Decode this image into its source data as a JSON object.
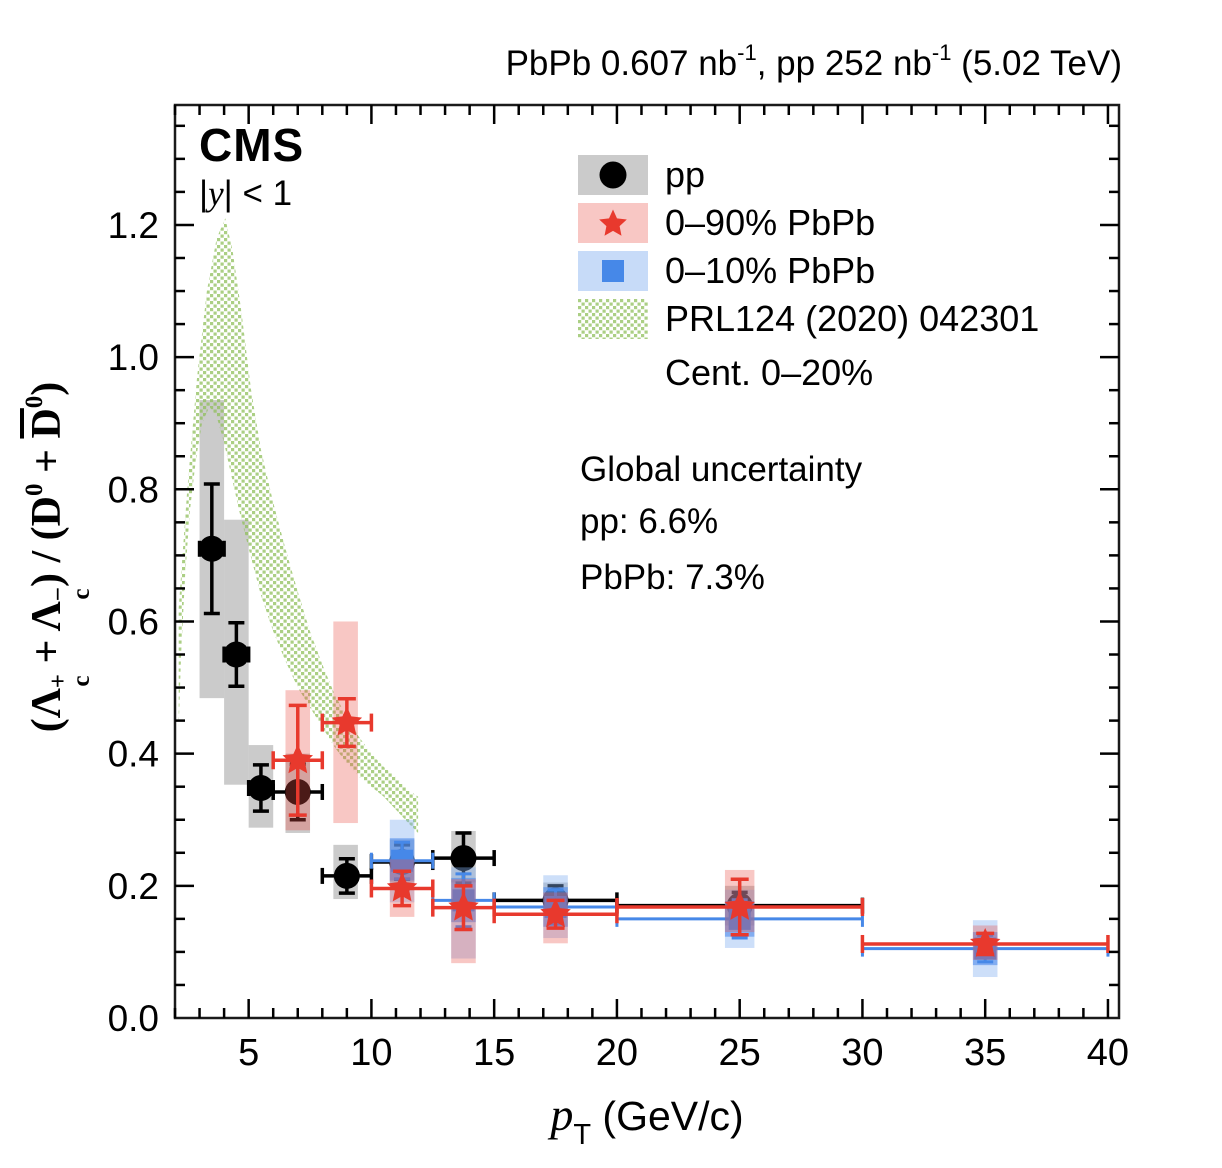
{
  "header": {
    "p1": "PbPb 0.607 nb",
    "s1": "-1",
    "p2": ", pp 252 nb",
    "s2": "-1",
    "p3": " (5.02 TeV)"
  },
  "cms": {
    "label": "CMS",
    "rap_pre": "|",
    "rap_y": "y",
    "rap_post": "| < 1"
  },
  "legend": {
    "items": [
      {
        "label": "pp",
        "marker": "circle",
        "marker_color": "#000000",
        "box_color": "rgba(140,140,140,0.45)"
      },
      {
        "label": "0–90% PbPb",
        "marker": "star",
        "marker_color": "#e8392d",
        "box_color": "rgba(232,80,70,0.32)"
      },
      {
        "label": "0–10% PbPb",
        "marker": "square",
        "marker_color": "#4688e8",
        "box_color": "rgba(130,175,240,0.45)"
      },
      {
        "label": "PRL124 (2020) 042301",
        "marker": "hatch",
        "marker_color": "#8fbf5a",
        "box_color": "#ffffff"
      },
      {
        "label": "Cent. 0–20%",
        "marker": "none",
        "marker_color": "",
        "box_color": ""
      }
    ]
  },
  "global_uncertainty": {
    "title": "Global uncertainty",
    "pp": "pp: 6.6%",
    "pbpb": "PbPb: 7.3%"
  },
  "y_title": {
    "t1": "(Λ",
    "sup1": "+",
    "sub1": "c",
    "t2": " + Λ",
    "sup2": "−",
    "sub2": "c",
    "t3": ") / (D",
    "sup3": "0",
    "t4": " + ",
    "t5": "D",
    "sup5": "0",
    "t6": ")"
  },
  "x_title": {
    "p": "p",
    "sub": "T",
    "rest": " (GeV/c)"
  },
  "chart_data": {
    "type": "scatter",
    "title": "PbPb 0.607 nb-1, pp 252 nb-1 (5.02 TeV)",
    "xlabel": "pT (GeV/c)",
    "ylabel": "(Lambda_c+ + Lambda_c-) / (D0 + D0bar)",
    "xlim": [
      2.0,
      40.45
    ],
    "ylim": [
      0,
      1.3815
    ],
    "grid": false,
    "legend_position": "top-right",
    "x_ticks": {
      "major": [
        5,
        10,
        15,
        20,
        25,
        30,
        35,
        40
      ],
      "labels": [
        "5",
        "10",
        "15",
        "20",
        "25",
        "30",
        "35",
        "40"
      ],
      "minor_step": 1
    },
    "y_ticks": {
      "major": [
        0,
        0.2,
        0.4,
        0.6,
        0.8,
        1.0,
        1.2
      ],
      "labels": [
        "0.0",
        "0.2",
        "0.4",
        "0.6",
        "0.8",
        "1.0",
        "1.2"
      ],
      "minor_step": 0.05
    },
    "series": [
      {
        "id": "pp",
        "name": "pp",
        "marker": "circle",
        "color": "#000000",
        "box_color": "rgba(140,140,140,0.45)",
        "points": [
          {
            "x": 3.5,
            "bin": [
              3,
              4
            ],
            "y": 0.71,
            "stat": 0.098,
            "box": [
              0.484,
              0.935
            ],
            "boxx": [
              3.0,
              4.0
            ]
          },
          {
            "x": 4.5,
            "bin": [
              4,
              5
            ],
            "y": 0.55,
            "stat": 0.048,
            "box": [
              0.353,
              0.754
            ],
            "boxx": [
              4.0,
              5.0
            ]
          },
          {
            "x": 5.5,
            "bin": [
              5,
              6
            ],
            "y": 0.348,
            "stat": 0.035,
            "box": [
              0.288,
              0.413
            ],
            "boxx": [
              5.0,
              6.0
            ]
          },
          {
            "x": 7.0,
            "bin": [
              6,
              8
            ],
            "y": 0.342,
            "stat": 0.042,
            "box": [
              0.28,
              0.4
            ],
            "boxx": [
              6.5,
              7.5
            ]
          },
          {
            "x": 9.0,
            "bin": [
              8,
              10
            ],
            "y": 0.215,
            "stat": 0.026,
            "box": [
              0.18,
              0.262
            ],
            "boxx": [
              8.45,
              9.45
            ]
          },
          {
            "x": 11.25,
            "bin": [
              10,
              12.5
            ],
            "y": 0.236,
            "stat": 0.026,
            "box": [
              0.205,
              0.27
            ],
            "boxx": [
              10.75,
              11.75
            ]
          },
          {
            "x": 13.75,
            "bin": [
              12.5,
              15
            ],
            "y": 0.242,
            "stat": 0.038,
            "box": [
              0.205,
              0.283
            ],
            "boxx": [
              13.25,
              14.25
            ]
          },
          {
            "x": 17.5,
            "bin": [
              15,
              20
            ],
            "y": 0.178,
            "stat": 0.022,
            "box": [
              0.155,
              0.205
            ],
            "boxx": [
              17.0,
              18.0
            ]
          },
          {
            "x": 25.0,
            "bin": [
              20,
              30
            ],
            "y": 0.17,
            "stat": 0.02,
            "box": [
              0.14,
              0.2
            ],
            "boxx": [
              24.4,
              25.6
            ]
          }
        ]
      },
      {
        "id": "pbpb010",
        "name": "0–10% PbPb",
        "marker": "square",
        "color": "#4688e8",
        "box_color": "rgba(80,140,235,0.6)",
        "outer_box_color": "rgba(130,175,240,0.4)",
        "points": [
          {
            "x": 11.25,
            "bin": [
              10,
              12.5
            ],
            "y": 0.238,
            "stat": 0.028,
            "box": [
              0.208,
              0.272
            ],
            "outer": [
              0.175,
              0.3
            ],
            "boxx": [
              10.75,
              11.75
            ]
          },
          {
            "x": 13.75,
            "bin": [
              12.5,
              15
            ],
            "y": 0.178,
            "stat": 0.04,
            "box": [
              0.145,
              0.212
            ],
            "outer": [
              0.09,
              0.228
            ],
            "boxx": [
              13.25,
              14.25
            ]
          },
          {
            "x": 17.5,
            "bin": [
              15,
              20
            ],
            "y": 0.168,
            "stat": 0.026,
            "box": [
              0.138,
              0.198
            ],
            "outer": [
              0.121,
              0.216
            ],
            "boxx": [
              17.0,
              18.0
            ]
          },
          {
            "x": 25.0,
            "bin": [
              20,
              30
            ],
            "y": 0.15,
            "stat": 0.029,
            "box": [
              0.123,
              0.177
            ],
            "outer": [
              0.106,
              0.194
            ],
            "boxx": [
              24.4,
              25.6
            ]
          },
          {
            "x": 35.0,
            "bin": [
              30,
              40
            ],
            "y": 0.105,
            "stat": 0.02,
            "box": [
              0.08,
              0.13
            ],
            "outer": [
              0.062,
              0.148
            ],
            "boxx": [
              34.5,
              35.5
            ]
          }
        ]
      },
      {
        "id": "pbpb090",
        "name": "0–90% PbPb",
        "marker": "star",
        "color": "#e8392d",
        "box_color": "rgba(232,80,70,0.32)",
        "points": [
          {
            "x": 7.0,
            "bin": [
              6,
              8
            ],
            "y": 0.39,
            "stat": 0.083,
            "box": [
              0.284,
              0.496
            ],
            "boxx": [
              6.5,
              7.5
            ]
          },
          {
            "x": 9.0,
            "bin": [
              8,
              10
            ],
            "y": 0.447,
            "stat": 0.036,
            "box": [
              0.295,
              0.6
            ],
            "boxx": [
              8.45,
              9.45
            ]
          },
          {
            "x": 11.25,
            "bin": [
              10,
              12.5
            ],
            "y": 0.196,
            "stat": 0.026,
            "box": [
              0.153,
              0.24
            ],
            "boxx": [
              10.75,
              11.75
            ]
          },
          {
            "x": 13.75,
            "bin": [
              12.5,
              15
            ],
            "y": 0.167,
            "stat": 0.033,
            "box": [
              0.083,
              0.21
            ],
            "boxx": [
              13.25,
              14.25
            ]
          },
          {
            "x": 17.5,
            "bin": [
              15,
              20
            ],
            "y": 0.157,
            "stat": 0.021,
            "box": [
              0.113,
              0.19
            ],
            "boxx": [
              17.0,
              18.0
            ]
          },
          {
            "x": 25.0,
            "bin": [
              20,
              30
            ],
            "y": 0.168,
            "stat": 0.042,
            "box": [
              0.13,
              0.224
            ],
            "boxx": [
              24.4,
              25.6
            ]
          },
          {
            "x": 35.0,
            "bin": [
              30,
              40
            ],
            "y": 0.112,
            "stat": 0.016,
            "box": [
              0.088,
              0.14
            ],
            "boxx": [
              34.5,
              35.5
            ]
          }
        ]
      }
    ],
    "band": {
      "name": "PRL124 (2020) 042301 Cent. 0–20%",
      "color": "#8fbf5a",
      "upper": [
        [
          2.15,
          0.62
        ],
        [
          2.5,
          0.8
        ],
        [
          2.9,
          0.97
        ],
        [
          3.3,
          1.1
        ],
        [
          3.7,
          1.18
        ],
        [
          4.05,
          1.21
        ],
        [
          4.35,
          1.16
        ],
        [
          4.7,
          1.07
        ],
        [
          5.1,
          0.95
        ],
        [
          5.5,
          0.86
        ],
        [
          6.0,
          0.78
        ],
        [
          6.5,
          0.71
        ],
        [
          7.0,
          0.645
        ],
        [
          7.5,
          0.585
        ],
        [
          8.0,
          0.535
        ],
        [
          8.5,
          0.49
        ],
        [
          9.0,
          0.455
        ],
        [
          9.5,
          0.425
        ],
        [
          10.0,
          0.4
        ],
        [
          10.5,
          0.38
        ],
        [
          11.0,
          0.365
        ],
        [
          11.5,
          0.345
        ],
        [
          11.9,
          0.335
        ]
      ],
      "lower": [
        [
          11.9,
          0.28
        ],
        [
          11.5,
          0.295
        ],
        [
          11.0,
          0.315
        ],
        [
          10.5,
          0.335
        ],
        [
          10.0,
          0.35
        ],
        [
          9.5,
          0.365
        ],
        [
          9.0,
          0.385
        ],
        [
          8.5,
          0.41
        ],
        [
          8.0,
          0.44
        ],
        [
          7.5,
          0.47
        ],
        [
          7.0,
          0.5
        ],
        [
          6.5,
          0.54
        ],
        [
          6.0,
          0.585
        ],
        [
          5.5,
          0.64
        ],
        [
          5.0,
          0.71
        ],
        [
          4.6,
          0.77
        ],
        [
          4.3,
          0.82
        ],
        [
          4.0,
          0.87
        ],
        [
          3.7,
          0.91
        ],
        [
          3.4,
          0.925
        ],
        [
          3.1,
          0.9
        ],
        [
          2.85,
          0.845
        ],
        [
          2.6,
          0.765
        ],
        [
          2.4,
          0.66
        ],
        [
          2.25,
          0.55
        ],
        [
          2.15,
          0.44
        ]
      ]
    }
  }
}
